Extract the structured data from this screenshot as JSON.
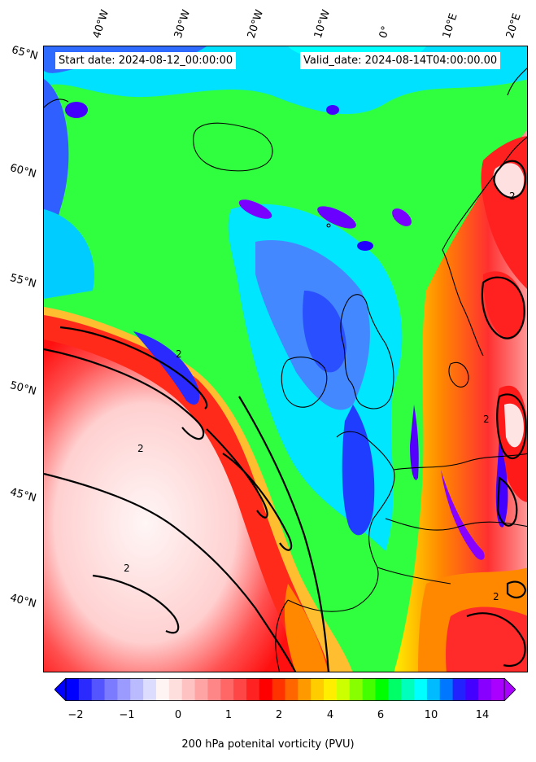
{
  "map": {
    "start_date": "Start date: 2024-08-12_00:00:00",
    "valid_date": "Valid_date: 2024-08-14T04:00:00.00",
    "lon_labels": [
      "40°W",
      "30°W",
      "20°W",
      "10°W",
      "0°",
      "10°E",
      "20°E"
    ],
    "lat_labels": [
      "65°N",
      "60°N",
      "55°N",
      "50°N",
      "45°N",
      "40°N"
    ],
    "contour_label": "2",
    "colorbar": {
      "ticks": [
        "−2",
        "−1",
        "0",
        "1",
        "2",
        "4",
        "6",
        "10",
        "14"
      ],
      "title": "200 hPa potenital vorticity (PVU)",
      "colors": [
        "#0000ff",
        "#2a2aff",
        "#5555ff",
        "#7b7bff",
        "#9a9aff",
        "#babaff",
        "#dcdcff",
        "#fff4f4",
        "#ffdede",
        "#ffc2c2",
        "#ffa4a4",
        "#ff8686",
        "#ff6666",
        "#ff4646",
        "#ff2222",
        "#ff0000",
        "#ff3300",
        "#ff6600",
        "#ff9900",
        "#ffcc00",
        "#ffee00",
        "#ccff00",
        "#88ff00",
        "#44ff00",
        "#00ff00",
        "#00ff66",
        "#00ffbb",
        "#00ffff",
        "#00bbff",
        "#0077ff",
        "#2222ff",
        "#4400ff",
        "#8800ff",
        "#aa00ff"
      ]
    },
    "colors": {
      "green_field": "#33ff33",
      "cyan_field": "#00e6ff",
      "blue_field": "#3377ff",
      "pink_high": "#ffe4e4",
      "red_high": "#ff2020",
      "orange": "#ff8800",
      "yellow": "#ffee00",
      "purple": "#8800ff"
    }
  }
}
